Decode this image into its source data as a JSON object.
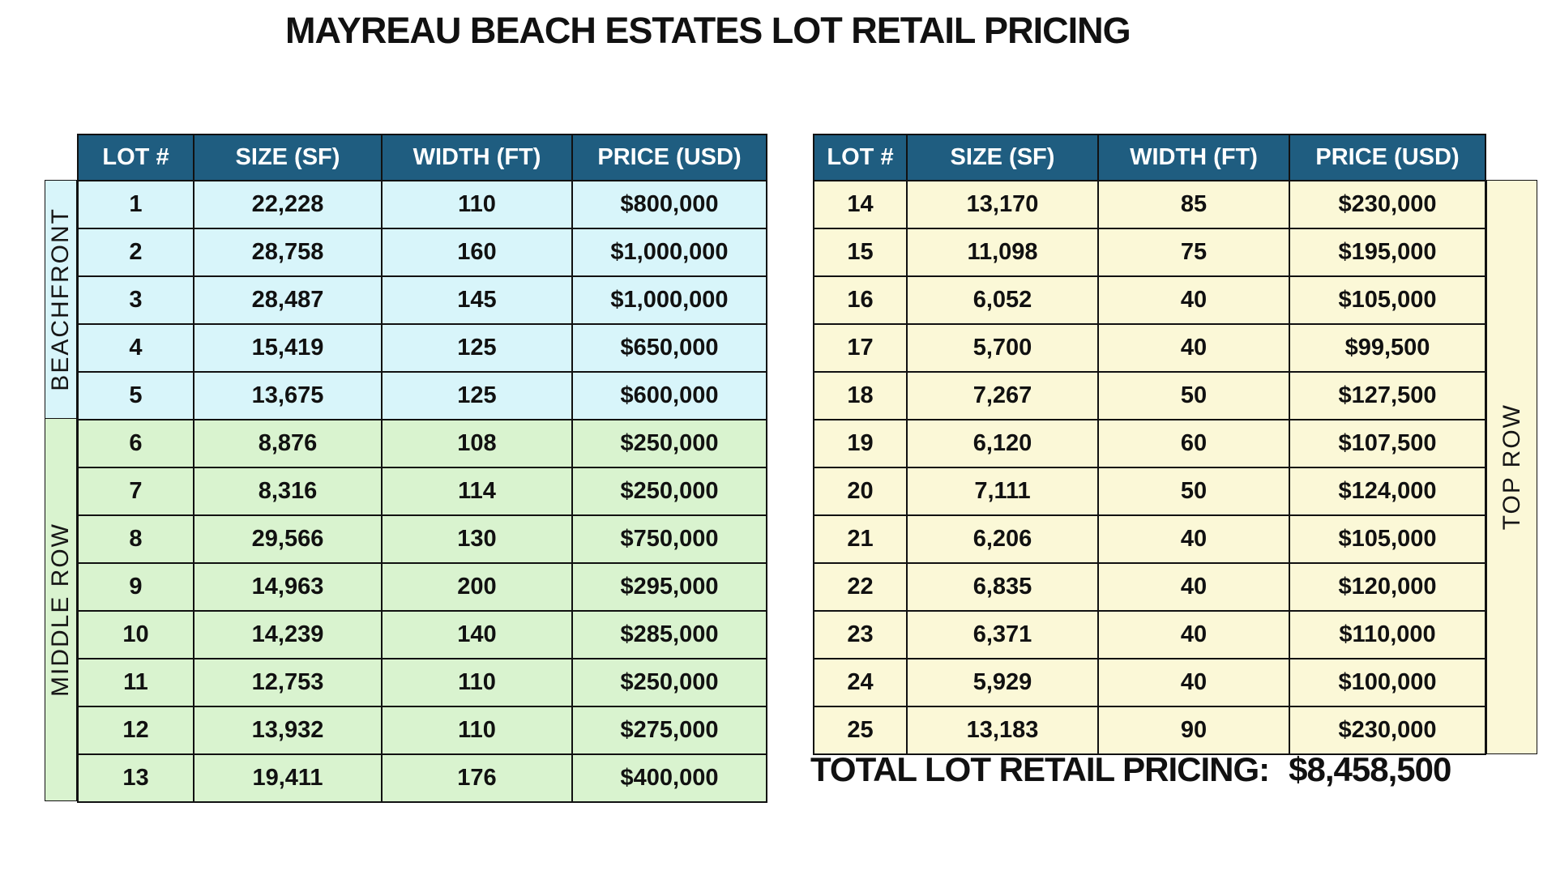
{
  "title": "MAYREAU BEACH ESTATES LOT RETAIL PRICING",
  "columns": [
    "LOT #",
    "SIZE (SF)",
    "WIDTH (FT)",
    "PRICE (USD)"
  ],
  "left_table": {
    "sections": [
      {
        "label": "BEACHFRONT",
        "rows": [
          {
            "lot": "1",
            "size": "22,228",
            "width": "110",
            "price": "$800,000"
          },
          {
            "lot": "2",
            "size": "28,758",
            "width": "160",
            "price": "$1,000,000"
          },
          {
            "lot": "3",
            "size": "28,487",
            "width": "145",
            "price": "$1,000,000"
          },
          {
            "lot": "4",
            "size": "15,419",
            "width": "125",
            "price": "$650,000"
          },
          {
            "lot": "5",
            "size": "13,675",
            "width": "125",
            "price": "$600,000"
          }
        ]
      },
      {
        "label": "MIDDLE ROW",
        "rows": [
          {
            "lot": "6",
            "size": "8,876",
            "width": "108",
            "price": "$250,000"
          },
          {
            "lot": "7",
            "size": "8,316",
            "width": "114",
            "price": "$250,000"
          },
          {
            "lot": "8",
            "size": "29,566",
            "width": "130",
            "price": "$750,000"
          },
          {
            "lot": "9",
            "size": "14,963",
            "width": "200",
            "price": "$295,000"
          },
          {
            "lot": "10",
            "size": "14,239",
            "width": "140",
            "price": "$285,000"
          },
          {
            "lot": "11",
            "size": "12,753",
            "width": "110",
            "price": "$250,000"
          },
          {
            "lot": "12",
            "size": "13,932",
            "width": "110",
            "price": "$275,000"
          },
          {
            "lot": "13",
            "size": "19,411",
            "width": "176",
            "price": "$400,000"
          }
        ]
      }
    ]
  },
  "right_table": {
    "label": "TOP ROW",
    "rows": [
      {
        "lot": "14",
        "size": "13,170",
        "width": "85",
        "price": "$230,000"
      },
      {
        "lot": "15",
        "size": "11,098",
        "width": "75",
        "price": "$195,000"
      },
      {
        "lot": "16",
        "size": "6,052",
        "width": "40",
        "price": "$105,000"
      },
      {
        "lot": "17",
        "size": "5,700",
        "width": "40",
        "price": "$99,500"
      },
      {
        "lot": "18",
        "size": "7,267",
        "width": "50",
        "price": "$127,500"
      },
      {
        "lot": "19",
        "size": "6,120",
        "width": "60",
        "price": "$107,500"
      },
      {
        "lot": "20",
        "size": "7,111",
        "width": "50",
        "price": "$124,000"
      },
      {
        "lot": "21",
        "size": "6,206",
        "width": "40",
        "price": "$105,000"
      },
      {
        "lot": "22",
        "size": "6,835",
        "width": "40",
        "price": "$120,000"
      },
      {
        "lot": "23",
        "size": "6,371",
        "width": "40",
        "price": "$110,000"
      },
      {
        "lot": "24",
        "size": "5,929",
        "width": "40",
        "price": "$100,000"
      },
      {
        "lot": "25",
        "size": "13,183",
        "width": "90",
        "price": "$230,000"
      }
    ]
  },
  "total": {
    "label": "TOTAL LOT RETAIL PRICING:",
    "value": "$8,458,500"
  },
  "colors": {
    "header_teal": "#1f5d80",
    "beachfront_bg": "#d8f5fa",
    "middle_row_bg": "#d9f3cf",
    "top_row_bg": "#fbf8d7",
    "line": "#111111"
  }
}
